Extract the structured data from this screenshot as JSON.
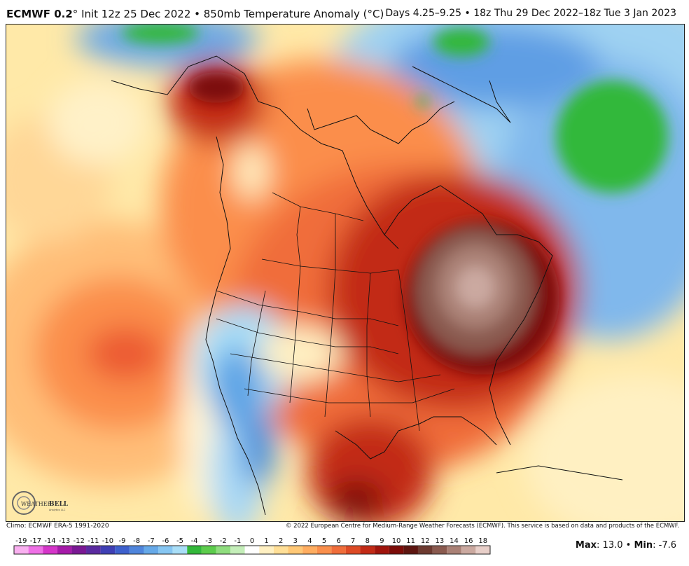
{
  "header": {
    "model": "ECMWF 0.2",
    "title_rest": "Init 12z 25 Dec 2022 • 850mb Temperature Anomaly (°C)",
    "valid_range": "Days 4.25–9.25 • 18z Thu 29 Dec 2022–18z Tue 3 Jan 2023"
  },
  "footer": {
    "climo": "Climo: ECMWF ERA-5 1991-2020",
    "copyright": "© 2022 European Centre for Medium-Range Weather Forecasts (ECMWF). This service is based on data and products of the ECMWF."
  },
  "logo": {
    "text_a": "WEATHER",
    "text_b": "BELL",
    "sub": "Analytics LLC"
  },
  "stats": {
    "max_label": "Max",
    "max_value": "13.0",
    "min_label": "Min",
    "min_value": "-7.6"
  },
  "colorbar": {
    "ticks": [
      "-19",
      "-17",
      "-14",
      "-13",
      "-12",
      "-11",
      "-10",
      "-9",
      "-8",
      "-7",
      "-6",
      "-5",
      "-4",
      "-3",
      "-2",
      "-1",
      "0",
      "1",
      "2",
      "3",
      "4",
      "5",
      "6",
      "7",
      "8",
      "9",
      "10",
      "11",
      "12",
      "13",
      "14",
      "16",
      "18"
    ],
    "colors": [
      "#f9b0f0",
      "#ef70e6",
      "#d535c9",
      "#a61aa9",
      "#7a1894",
      "#5a2aa0",
      "#3f3fb5",
      "#3e60cd",
      "#4f85dc",
      "#66a9e8",
      "#86c6f2",
      "#a9def7",
      "#33b83a",
      "#5ccc4c",
      "#8fdd7e",
      "#c4eeb9",
      "#ffffff",
      "#fff0c2",
      "#ffdf97",
      "#ffc876",
      "#ffad60",
      "#fa8f4c",
      "#f06d3a",
      "#dd4a25",
      "#c22a16",
      "#a0140c",
      "#7c0c08",
      "#5d1510",
      "#6d3a30",
      "#8a5a4f",
      "#aa8176",
      "#cba9a0",
      "#e8cfc9"
    ]
  }
}
